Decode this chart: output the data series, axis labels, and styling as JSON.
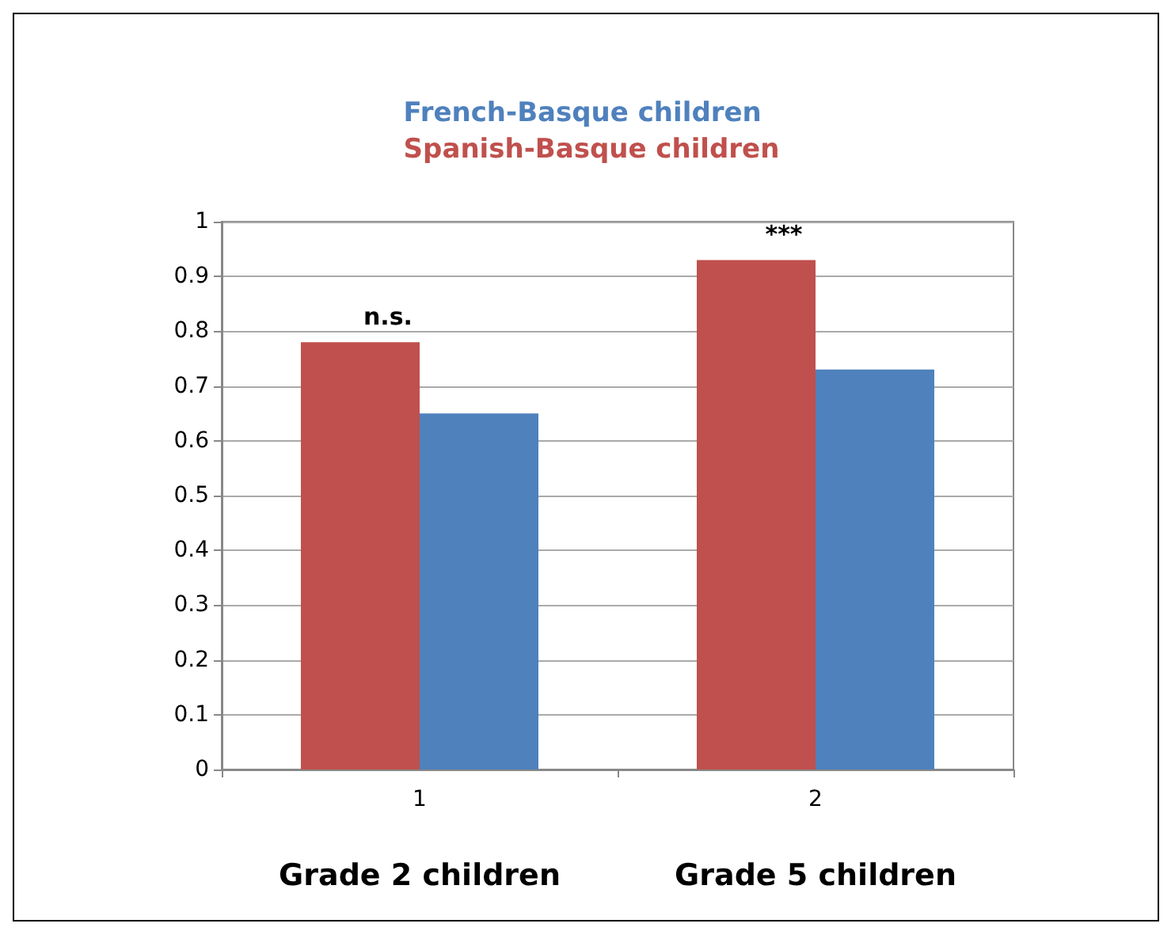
{
  "chart_data": {
    "type": "bar",
    "categories": [
      "1",
      "2"
    ],
    "series": [
      {
        "name": "Spanish-Basque children",
        "color": "#c0504d",
        "values": [
          0.78,
          0.93
        ]
      },
      {
        "name": "French-Basque children",
        "color": "#4f81bd",
        "values": [
          0.65,
          0.73
        ]
      }
    ],
    "ylim": [
      0,
      1
    ],
    "yticks": [
      0,
      0.1,
      0.2,
      0.3,
      0.4,
      0.5,
      0.6,
      0.7,
      0.8,
      0.9,
      1
    ],
    "grid": "y",
    "legend": "top",
    "annotations": [
      "n.s.",
      "***",
      "Grade 2 children",
      "Grade 5 children"
    ]
  }
}
